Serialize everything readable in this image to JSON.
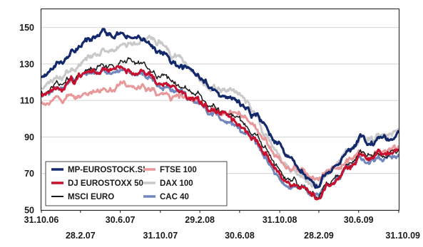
{
  "chart_data": {
    "type": "line",
    "title": "",
    "xlabel": "",
    "ylabel": "",
    "ylim": [
      50,
      160
    ],
    "y_ticks": [
      50,
      70,
      90,
      110,
      130,
      150
    ],
    "x_ticks_top_row": [
      "31.10.06",
      "30.6.07",
      "29.2.08",
      "31.10.08",
      "30.6.09"
    ],
    "x_ticks_bottom_row": [
      "28.2.07",
      "31.10.07",
      "30.6.08",
      "28.2.09",
      "31.10.09"
    ],
    "x_dates": [
      "2006-10-31",
      "2007-02-28",
      "2007-06-30",
      "2007-10-31",
      "2008-02-29",
      "2008-06-30",
      "2008-10-31",
      "2009-02-28",
      "2009-06-30",
      "2009-10-31"
    ],
    "grid": "horizontal",
    "legend_position": "bottom-left",
    "series": [
      {
        "name": "MP-EUROSTOCK.SI",
        "color": "#13296b",
        "values": [
          122,
          140,
          148,
          137,
          120,
          108,
          88,
          62,
          86,
          90
        ]
      },
      {
        "name": "DJ EUROSTOXX 50",
        "color": "#c8102e",
        "values": [
          113,
          122,
          127,
          122,
          108,
          97,
          72,
          55,
          77,
          80
        ]
      },
      {
        "name": "MSCI EURO",
        "color": "#1a1a1a",
        "values": [
          114,
          124,
          131,
          126,
          110,
          100,
          73,
          58,
          78,
          81
        ]
      },
      {
        "name": "FTSE 100",
        "color": "#e8989a",
        "values": [
          108,
          112,
          117,
          115,
          107,
          102,
          79,
          66,
          78,
          81
        ]
      },
      {
        "name": "DAX 100",
        "color": "#c9c9c9",
        "values": [
          115,
          130,
          140,
          143,
          119,
          112,
          80,
          63,
          86,
          94
        ]
      },
      {
        "name": "CAC 40",
        "color": "#7186bd",
        "values": [
          112,
          121,
          126,
          119,
          106,
          96,
          70,
          56,
          75,
          78
        ]
      }
    ]
  }
}
